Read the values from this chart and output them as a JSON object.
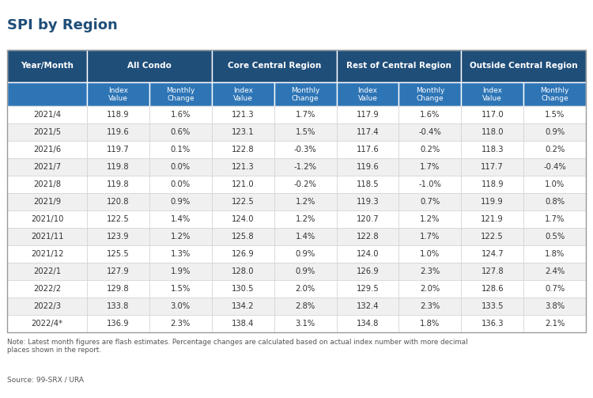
{
  "title": "SPI by Region",
  "header_bg": "#1F4E79",
  "subheader_bg": "#2E75B6",
  "header_text_color": "#FFFFFF",
  "body_text_color": "#333333",
  "border_color": "#CCCCCC",
  "note_text": "Note: Latest month figures are flash estimates. Percentage changes are calculated based on actual index number with more decimal\nplaces shown in the report.",
  "source_text": "Source: 99-SRX / URA",
  "rows": [
    [
      "2021/4",
      "118.9",
      "1.6%",
      "121.3",
      "1.7%",
      "117.9",
      "1.6%",
      "117.0",
      "1.5%"
    ],
    [
      "2021/5",
      "119.6",
      "0.6%",
      "123.1",
      "1.5%",
      "117.4",
      "-0.4%",
      "118.0",
      "0.9%"
    ],
    [
      "2021/6",
      "119.7",
      "0.1%",
      "122.8",
      "-0.3%",
      "117.6",
      "0.2%",
      "118.3",
      "0.2%"
    ],
    [
      "2021/7",
      "119.8",
      "0.0%",
      "121.3",
      "-1.2%",
      "119.6",
      "1.7%",
      "117.7",
      "-0.4%"
    ],
    [
      "2021/8",
      "119.8",
      "0.0%",
      "121.0",
      "-0.2%",
      "118.5",
      "-1.0%",
      "118.9",
      "1.0%"
    ],
    [
      "2021/9",
      "120.8",
      "0.9%",
      "122.5",
      "1.2%",
      "119.3",
      "0.7%",
      "119.9",
      "0.8%"
    ],
    [
      "2021/10",
      "122.5",
      "1.4%",
      "124.0",
      "1.2%",
      "120.7",
      "1.2%",
      "121.9",
      "1.7%"
    ],
    [
      "2021/11",
      "123.9",
      "1.2%",
      "125.8",
      "1.4%",
      "122.8",
      "1.7%",
      "122.5",
      "0.5%"
    ],
    [
      "2021/12",
      "125.5",
      "1.3%",
      "126.9",
      "0.9%",
      "124.0",
      "1.0%",
      "124.7",
      "1.8%"
    ],
    [
      "2022/1",
      "127.9",
      "1.9%",
      "128.0",
      "0.9%",
      "126.9",
      "2.3%",
      "127.8",
      "2.4%"
    ],
    [
      "2022/2",
      "129.8",
      "1.5%",
      "130.5",
      "2.0%",
      "129.5",
      "2.0%",
      "128.6",
      "0.7%"
    ],
    [
      "2022/3",
      "133.8",
      "3.0%",
      "134.2",
      "2.8%",
      "132.4",
      "2.3%",
      "133.5",
      "3.8%"
    ],
    [
      "2022/4*",
      "136.9",
      "2.3%",
      "138.4",
      "3.1%",
      "134.8",
      "1.8%",
      "136.3",
      "2.1%"
    ]
  ]
}
